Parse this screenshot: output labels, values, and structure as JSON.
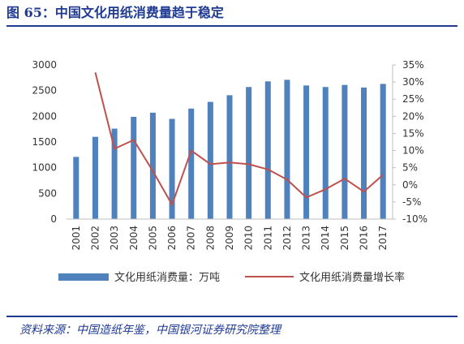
{
  "title": "图 65：中国文化用纸消费量趋于稳定",
  "source": "资料来源：中国造纸年鉴，中国银河证券研究院整理",
  "colors": {
    "bar": "#4f81bd",
    "line": "#c0504d",
    "title": "#1f3a93"
  },
  "chart_data": {
    "type": "bar+line",
    "categories": [
      "2001",
      "2002",
      "2003",
      "2004",
      "2005",
      "2006",
      "2007",
      "2008",
      "2009",
      "2010",
      "2011",
      "2012",
      "2013",
      "2014",
      "2015",
      "2016",
      "2017"
    ],
    "series": [
      {
        "name": "文化用纸消费量：万吨",
        "type": "bar",
        "axis": "left",
        "values": [
          1210,
          1600,
          1760,
          1990,
          2070,
          1950,
          2150,
          2280,
          2410,
          2570,
          2680,
          2710,
          2600,
          2570,
          2610,
          2560,
          2630
        ]
      },
      {
        "name": "文化用纸消费量增长率",
        "type": "line",
        "axis": "right",
        "values": [
          null,
          32.8,
          10.5,
          13.1,
          4.0,
          -5.8,
          10.0,
          6.0,
          6.5,
          6.0,
          4.5,
          1.5,
          -3.7,
          -1.3,
          1.8,
          -2.0,
          2.9
        ]
      }
    ],
    "y_left": {
      "min": 0,
      "max": 3000,
      "ticks": [
        "0",
        "500",
        "1000",
        "1500",
        "2000",
        "2500",
        "3000"
      ]
    },
    "y_right": {
      "min": -10,
      "max": 35,
      "ticks": [
        "-10%",
        "-5%",
        "0%",
        "5%",
        "10%",
        "15%",
        "20%",
        "25%",
        "30%",
        "35%"
      ]
    },
    "grid": false,
    "legend_position": "bottom"
  }
}
